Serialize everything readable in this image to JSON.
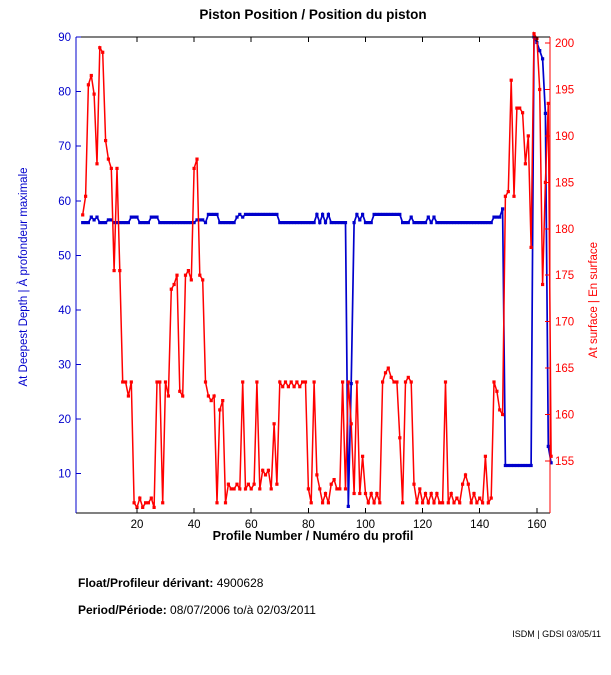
{
  "title": "Piston Position / Position du piston",
  "chart_data": {
    "type": "line",
    "title": "Piston Position / Position du piston",
    "xlabel": "Profile Number / Numéro du profil",
    "ylabel_left": "At Deepest Depth | À profondeur maximale",
    "ylabel_right": "At surface | En surface",
    "grid": false,
    "legend": "none",
    "xlim": [
      -1.35,
      164.6
    ],
    "x_ticks": [
      20,
      40,
      60,
      80,
      100,
      120,
      140,
      160
    ],
    "ylim_left": [
      2.8,
      90
    ],
    "yticks_left": [
      10,
      20,
      30,
      40,
      50,
      60,
      70,
      80,
      90
    ],
    "ylim_right": [
      149.4,
      200.65
    ],
    "yticks_right": [
      155,
      160,
      165,
      170,
      175,
      180,
      185,
      190,
      195,
      200
    ],
    "colors": {
      "left_axis": "#0000cc",
      "right_axis": "#ff0000",
      "frame": "#000000"
    },
    "x_start": 1,
    "series": [
      {
        "name": "piston-position-at-deepest-depth",
        "axis": "left",
        "color": "#0000cc",
        "values": [
          56,
          56,
          56,
          57,
          56.5,
          57,
          56,
          56,
          56,
          56.5,
          56.5,
          56,
          56,
          56,
          56,
          56,
          56,
          57,
          57,
          57,
          56,
          56,
          56,
          56,
          57,
          57,
          57,
          56,
          56,
          56,
          56,
          56,
          56,
          56,
          56,
          56,
          56,
          56,
          56,
          56,
          56.5,
          56.5,
          56.5,
          56,
          57.5,
          57.5,
          57.5,
          57.5,
          56,
          56,
          56,
          56,
          56,
          56,
          57,
          57.5,
          57,
          57.5,
          57.5,
          57.5,
          57.5,
          57.5,
          57.5,
          57.5,
          57.5,
          57.5,
          57.5,
          57.5,
          57.5,
          56,
          56,
          56,
          56,
          56,
          56,
          56,
          56,
          56,
          56,
          56,
          56,
          56,
          57.5,
          56,
          57.5,
          56,
          57.5,
          56,
          56,
          56,
          56,
          56,
          56,
          4,
          26.5,
          56,
          57.5,
          56.5,
          57.5,
          56,
          56,
          56,
          57.5,
          57.5,
          57.5,
          57.5,
          57.5,
          57.5,
          57.5,
          57.5,
          57.5,
          57.5,
          56,
          56,
          56,
          57,
          56,
          56,
          56,
          56,
          56,
          57,
          56,
          57,
          56,
          56,
          56,
          56,
          56,
          56,
          56,
          56,
          56,
          56,
          56,
          56,
          56,
          56,
          56,
          56,
          56,
          56,
          56,
          56,
          57,
          57,
          57,
          58.5,
          11.5,
          11.5,
          11.5,
          11.5,
          11.5,
          11.5,
          11.5,
          11.5,
          11.5,
          11.5,
          90,
          89,
          87.5,
          86,
          76,
          15,
          12
        ]
      },
      {
        "name": "piston-position-at-surface",
        "axis": "right",
        "color": "#ff0000",
        "values": [
          181.5,
          183.5,
          195.5,
          196.5,
          194.5,
          187,
          199.5,
          199,
          189.5,
          187.5,
          186.5,
          175.5,
          186.5,
          175.5,
          163.5,
          163.5,
          162,
          163.5,
          150.5,
          150,
          151,
          150,
          150.5,
          150.5,
          151,
          150,
          163.5,
          163.5,
          150.5,
          163.5,
          162,
          173.5,
          174,
          175,
          162.5,
          162,
          175,
          175.5,
          174.5,
          186.5,
          187.5,
          175,
          174.5,
          163.5,
          162,
          161.5,
          162,
          150.5,
          160.5,
          161.5,
          150.5,
          152.5,
          152,
          152,
          152.5,
          152,
          163.5,
          152,
          152.5,
          152,
          152.5,
          163.5,
          152,
          154,
          153.5,
          154,
          152,
          159,
          152.5,
          163.5,
          163,
          163.5,
          163,
          163.5,
          163,
          163.5,
          163,
          163.5,
          163.5,
          152,
          150.5,
          163.5,
          153.5,
          152,
          150.5,
          151.5,
          150.5,
          152.5,
          153,
          152,
          152,
          163.5,
          152,
          163.5,
          159,
          151.5,
          163.5,
          151.5,
          155.5,
          151.5,
          150.5,
          151.5,
          150.5,
          151.5,
          150.5,
          163.5,
          164.5,
          165,
          164,
          163.5,
          163.5,
          157.5,
          150.5,
          163.5,
          164,
          163.5,
          152.5,
          150.5,
          152,
          150.5,
          151.5,
          150.5,
          151.5,
          150.5,
          151.5,
          150.5,
          150.5,
          163.5,
          150.5,
          151.5,
          150.5,
          151,
          150.5,
          152.5,
          153.5,
          152.5,
          150.5,
          151.5,
          150.5,
          151,
          150.5,
          155.5,
          150.5,
          151,
          163.5,
          162.5,
          160.5,
          160,
          183.5,
          184,
          196,
          183.5,
          193,
          193,
          192.5,
          187,
          190,
          178,
          201,
          200.5,
          195,
          174,
          185,
          193.5,
          155.5
        ]
      }
    ]
  },
  "footer": {
    "float_label": "Float/Profileur dérivant:",
    "float_value": "4900628",
    "period_label": "Period/Période:",
    "period_value": "08/07/2006 to/à 02/03/2011",
    "credit": "ISDM | GDSI 03/05/11"
  }
}
